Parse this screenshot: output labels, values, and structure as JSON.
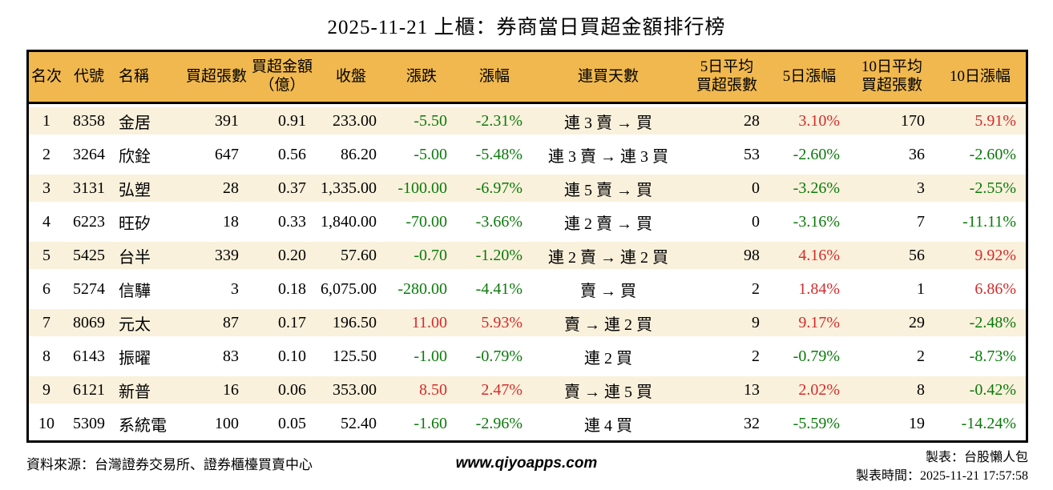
{
  "title": "2025-11-21 上櫃：券商當日買超金額排行榜",
  "colors": {
    "header_bg": "#F0B84E",
    "row_alt_bg": "#FAF1DC",
    "up_red": "#D42B2B",
    "down_green": "#0A7A0A",
    "border": "#000000"
  },
  "table": {
    "columns": [
      {
        "id": "rank",
        "label": "名次",
        "align": "ac",
        "colored": false
      },
      {
        "id": "code",
        "label": "代號",
        "align": "ac",
        "colored": false
      },
      {
        "id": "name",
        "label": "名稱",
        "align": "al",
        "colored": false
      },
      {
        "id": "vol",
        "label": "買超張數",
        "align": "ar",
        "colored": false
      },
      {
        "id": "amt",
        "label": "買超金額\n（億）",
        "align": "ar",
        "colored": false
      },
      {
        "id": "close",
        "label": "收盤",
        "align": "ar",
        "colored": false
      },
      {
        "id": "chg",
        "label": "漲跌",
        "align": "ar",
        "colored": true
      },
      {
        "id": "chg_pct",
        "label": "漲幅",
        "align": "ar",
        "colored": true
      },
      {
        "id": "streak",
        "label": "連買天數",
        "align": "ac",
        "colored": false
      },
      {
        "id": "avg5",
        "label": "5日平均\n買超張數",
        "align": "ar",
        "colored": false
      },
      {
        "id": "pct5",
        "label": "5日漲幅",
        "align": "ar",
        "colored": true
      },
      {
        "id": "avg10",
        "label": "10日平均\n買超張數",
        "align": "ar",
        "colored": false
      },
      {
        "id": "pct10",
        "label": "10日漲幅",
        "align": "ar",
        "colored": true
      }
    ],
    "rows": [
      [
        "1",
        "8358",
        "金居",
        "391",
        "0.91",
        "233.00",
        "-5.50",
        "-2.31%",
        "連 3 賣 → 買",
        "28",
        "3.10%",
        "170",
        "5.91%"
      ],
      [
        "2",
        "3264",
        "欣銓",
        "647",
        "0.56",
        "86.20",
        "-5.00",
        "-5.48%",
        "連 3 賣 → 連 3 買",
        "53",
        "-2.60%",
        "36",
        "-2.60%"
      ],
      [
        "3",
        "3131",
        "弘塑",
        "28",
        "0.37",
        "1,335.00",
        "-100.00",
        "-6.97%",
        "連 5 賣 → 買",
        "0",
        "-3.26%",
        "3",
        "-2.55%"
      ],
      [
        "4",
        "6223",
        "旺矽",
        "18",
        "0.33",
        "1,840.00",
        "-70.00",
        "-3.66%",
        "連 2 賣 → 買",
        "0",
        "-3.16%",
        "7",
        "-11.11%"
      ],
      [
        "5",
        "5425",
        "台半",
        "339",
        "0.20",
        "57.60",
        "-0.70",
        "-1.20%",
        "連 2 賣 → 連 2 買",
        "98",
        "4.16%",
        "56",
        "9.92%"
      ],
      [
        "6",
        "5274",
        "信驊",
        "3",
        "0.18",
        "6,075.00",
        "-280.00",
        "-4.41%",
        "賣 → 買",
        "2",
        "1.84%",
        "1",
        "6.86%"
      ],
      [
        "7",
        "8069",
        "元太",
        "87",
        "0.17",
        "196.50",
        "11.00",
        "5.93%",
        "賣 → 連 2 買",
        "9",
        "9.17%",
        "29",
        "-2.48%"
      ],
      [
        "8",
        "6143",
        "振曜",
        "83",
        "0.10",
        "125.50",
        "-1.00",
        "-0.79%",
        "連 2 買",
        "2",
        "-0.79%",
        "2",
        "-8.73%"
      ],
      [
        "9",
        "6121",
        "新普",
        "16",
        "0.06",
        "353.00",
        "8.50",
        "2.47%",
        "賣 → 連 5 買",
        "13",
        "2.02%",
        "8",
        "-0.42%"
      ],
      [
        "10",
        "5309",
        "系統電",
        "100",
        "0.05",
        "52.40",
        "-1.60",
        "-2.96%",
        "連 4 買",
        "32",
        "-5.59%",
        "19",
        "-14.24%"
      ]
    ]
  },
  "footer": {
    "source": "資料來源：台灣證券交易所、證券櫃檯買賣中心",
    "website": "www.qiyoapps.com",
    "author": "製表：台股懶人包",
    "generated": "製表時間：2025-11-21 17:57:58"
  }
}
